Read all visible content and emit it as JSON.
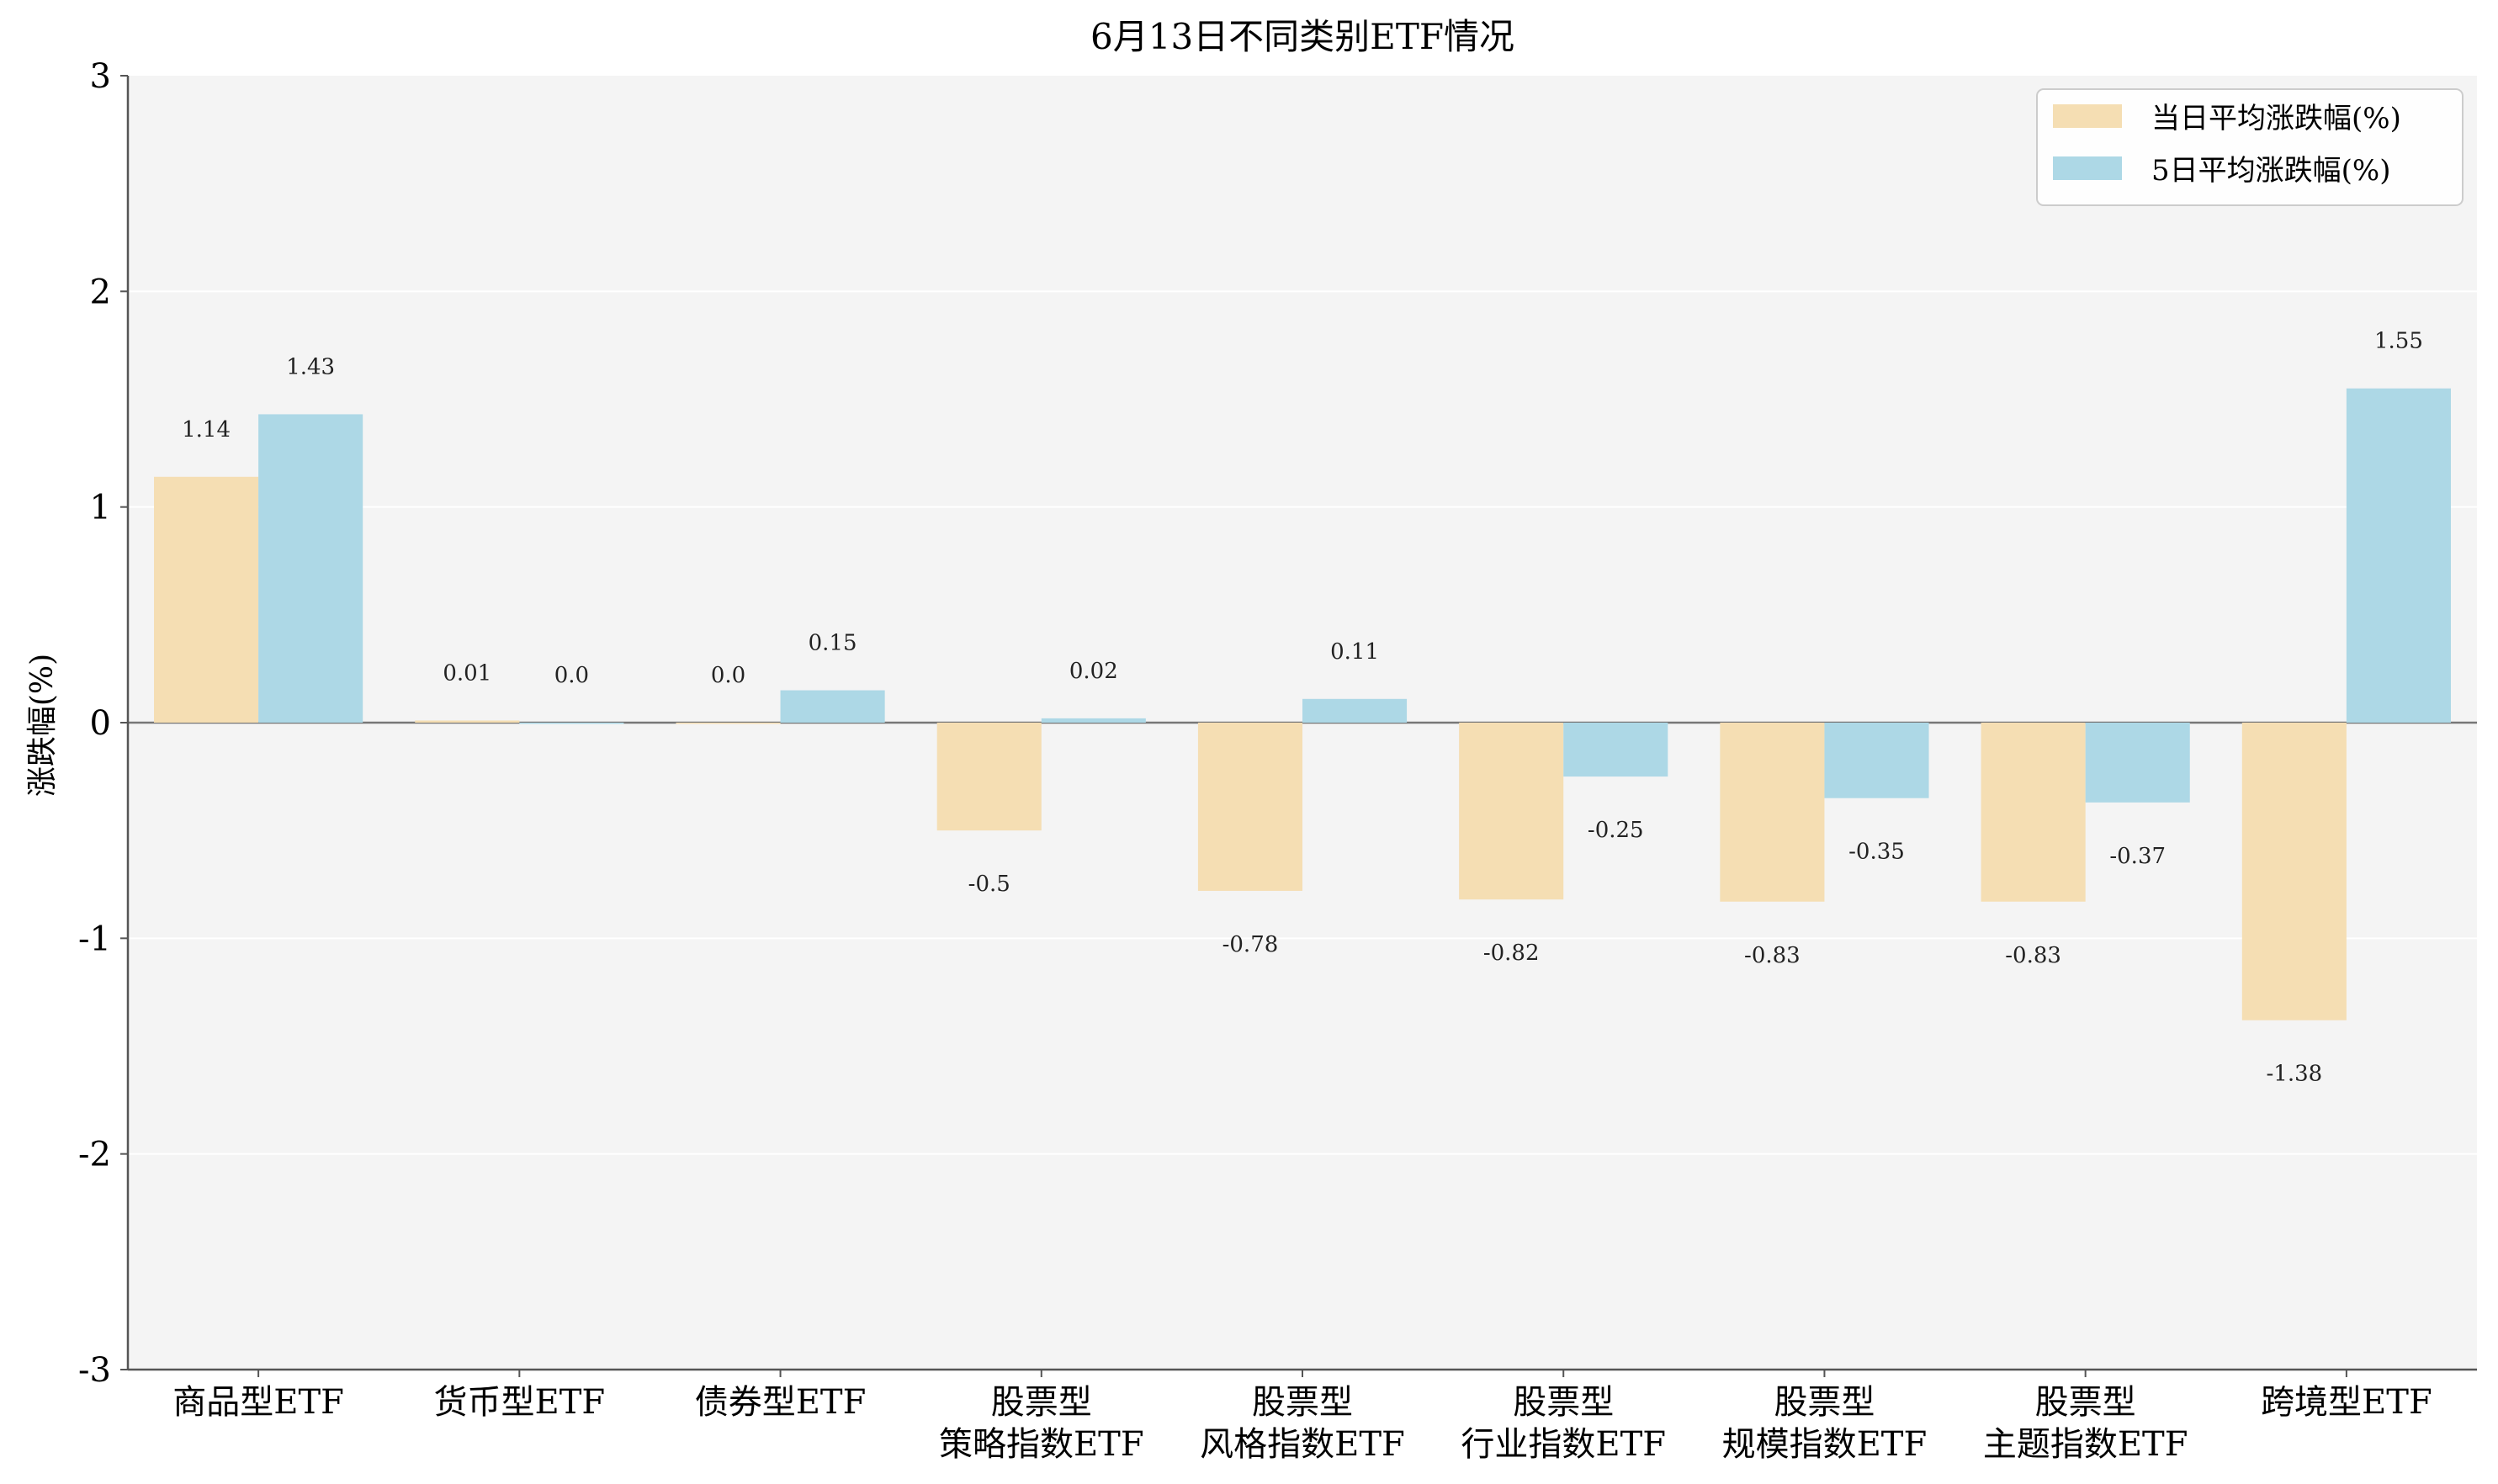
{
  "chart_data": {
    "type": "bar",
    "title": "6月13日不同类别ETF情况",
    "xlabel": "",
    "ylabel": "涨跌幅(%)",
    "ylim": [
      -3,
      3
    ],
    "yticks": [
      "-3",
      "-2",
      "-1",
      "0",
      "1",
      "2",
      "3"
    ],
    "grid": true,
    "legend_position": "top-right",
    "categories": [
      [
        "商品型ETF"
      ],
      [
        "货币型ETF"
      ],
      [
        "债券型ETF"
      ],
      [
        "股票型",
        "策略指数ETF"
      ],
      [
        "股票型",
        "风格指数ETF"
      ],
      [
        "股票型",
        "行业指数ETF"
      ],
      [
        "股票型",
        "规模指数ETF"
      ],
      [
        "股票型",
        "主题指数ETF"
      ],
      [
        "跨境型ETF"
      ]
    ],
    "series": [
      {
        "name": "当日平均涨跌幅(%)",
        "color": "#f5deb3",
        "values": [
          1.14,
          0.01,
          0.0,
          -0.5,
          -0.78,
          -0.82,
          -0.83,
          -0.83,
          -1.38
        ],
        "labels": [
          "1.14",
          "0.01",
          "0.0",
          "-0.5",
          "-0.78",
          "-0.82",
          "-0.83",
          "-0.83",
          "-1.38"
        ]
      },
      {
        "name": "5日平均涨跌幅(%)",
        "color": "#add8e6",
        "values": [
          1.43,
          0.0,
          0.15,
          0.02,
          0.11,
          -0.25,
          -0.35,
          -0.37,
          1.55
        ],
        "labels": [
          "1.43",
          "0.0",
          "0.15",
          "0.02",
          "0.11",
          "-0.25",
          "-0.35",
          "-0.37",
          "1.55"
        ]
      }
    ]
  }
}
